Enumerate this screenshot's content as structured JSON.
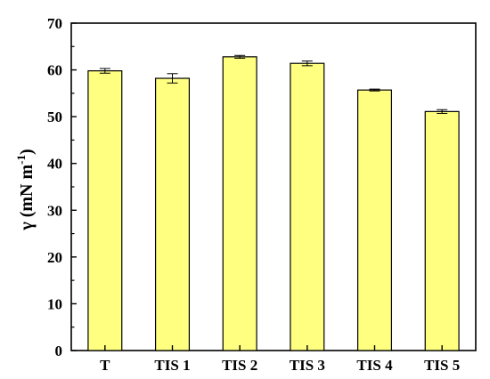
{
  "chart_data": {
    "type": "bar",
    "title": "",
    "xlabel": "",
    "ylabel": {
      "main": "γ (mN m",
      "superscript": "-1",
      "close": ")"
    },
    "categories": [
      "T",
      "TIS 1",
      "TIS 2",
      "TIS 3",
      "TIS 4",
      "TIS 5"
    ],
    "values": [
      59.8,
      58.2,
      62.8,
      61.4,
      55.7,
      51.1
    ],
    "errors": [
      0.5,
      1.0,
      0.3,
      0.5,
      0.2,
      0.4
    ],
    "ylim": [
      0,
      70
    ],
    "yticks": [
      0,
      10,
      20,
      30,
      40,
      50,
      60,
      70
    ],
    "bar_color": "#FFFF80",
    "bar_edge_color": "#000000",
    "grid": false,
    "legend": "none"
  }
}
